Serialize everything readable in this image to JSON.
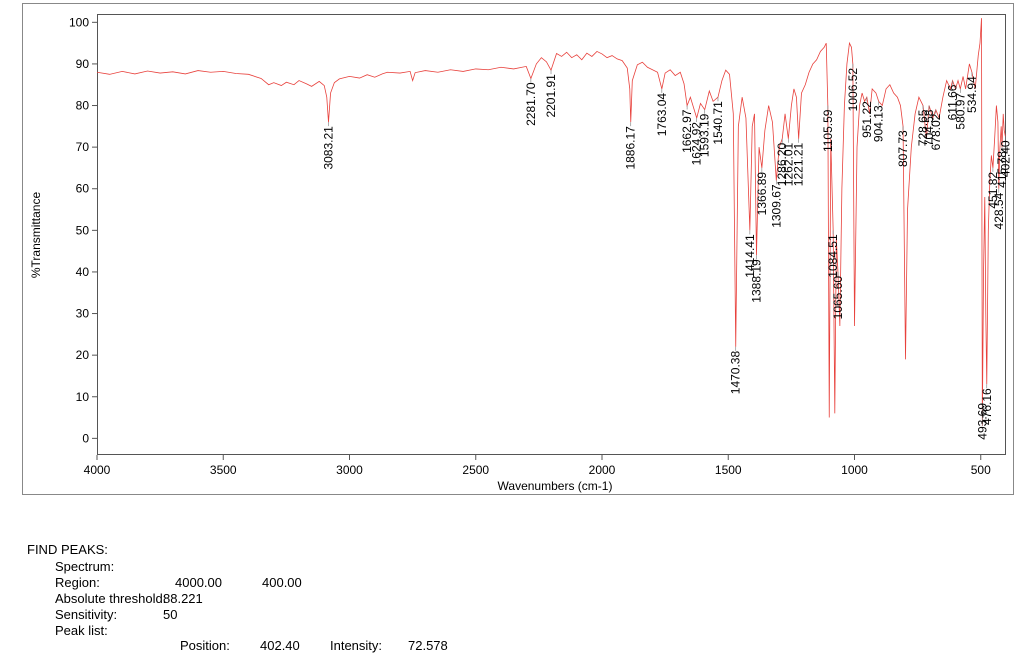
{
  "chart_data": {
    "type": "line",
    "xlabel": "Wavenumbers (cm-1)",
    "ylabel": "%Transmittance",
    "xlim": [
      4000,
      400
    ],
    "ylim": [
      -4,
      102
    ],
    "xticks": [
      4000,
      3500,
      3000,
      2500,
      2000,
      1500,
      1000,
      500
    ],
    "yticks": [
      0,
      10,
      20,
      30,
      40,
      50,
      60,
      70,
      80,
      90,
      100
    ],
    "color": "#e8413c",
    "x": [
      4000,
      3950,
      3900,
      3850,
      3800,
      3750,
      3700,
      3650,
      3600,
      3550,
      3500,
      3450,
      3400,
      3350,
      3320,
      3300,
      3270,
      3250,
      3220,
      3200,
      3170,
      3150,
      3120,
      3100,
      3090,
      3083.21,
      3075,
      3060,
      3040,
      3000,
      2960,
      2930,
      2900,
      2870,
      2850,
      2800,
      2760,
      2750,
      2740,
      2700,
      2650,
      2600,
      2550,
      2500,
      2450,
      2400,
      2350,
      2300,
      2281.7,
      2260,
      2240,
      2220,
      2201.91,
      2180,
      2160,
      2140,
      2120,
      2100,
      2080,
      2060,
      2040,
      2020,
      2000,
      1980,
      1960,
      1940,
      1920,
      1900,
      1890,
      1886.17,
      1880,
      1860,
      1840,
      1820,
      1800,
      1780,
      1763.04,
      1750,
      1730,
      1710,
      1690,
      1675,
      1662.97,
      1650,
      1640,
      1624.92,
      1610,
      1593.19,
      1575,
      1560,
      1540.71,
      1525,
      1510,
      1495,
      1480,
      1470.38,
      1460,
      1445,
      1430,
      1414.41,
      1405,
      1396,
      1388.19,
      1378,
      1366.89,
      1355,
      1340,
      1325,
      1309.67,
      1298,
      1286.2,
      1275,
      1262.01,
      1250,
      1240,
      1230,
      1221.21,
      1210,
      1195,
      1180,
      1165,
      1150,
      1135,
      1120,
      1112,
      1105.59,
      1100,
      1094,
      1084.51,
      1078,
      1072,
      1065.6,
      1058,
      1050,
      1040,
      1030,
      1020,
      1012,
      1006.52,
      1000,
      990,
      980,
      970,
      960,
      951.22,
      940,
      930,
      915,
      904.13,
      890,
      875,
      860,
      845,
      830,
      818,
      807.73,
      798,
      790,
      775,
      760,
      745,
      728.65,
      715,
      704.58,
      690,
      678.02,
      665,
      650,
      635,
      620,
      611.66,
      600,
      590,
      580.97,
      570,
      560,
      545,
      534.94,
      522,
      510,
      503,
      497,
      493.69,
      489,
      484,
      480,
      476.16,
      470,
      464,
      458,
      451.82,
      445,
      438,
      432,
      428.54,
      424,
      419,
      415.78,
      411,
      407,
      402.4
    ],
    "values": [
      88,
      87.5,
      88.2,
      87.6,
      88.3,
      87.8,
      88.1,
      87.6,
      88.4,
      88,
      88.2,
      87.7,
      87.5,
      86.5,
      85,
      85.5,
      84.8,
      85.6,
      85,
      86,
      85.2,
      84.6,
      85.8,
      84.8,
      82,
      76,
      83,
      85.5,
      86.4,
      87,
      86.6,
      87.4,
      86.8,
      87.6,
      88,
      87.8,
      88.2,
      86,
      87.9,
      88.4,
      88,
      88.6,
      88.2,
      88.8,
      88.6,
      89.2,
      88.8,
      89.4,
      86.5,
      90,
      91.5,
      90.5,
      88.5,
      92.5,
      91.8,
      92.8,
      91.5,
      92.2,
      91,
      92.6,
      91.8,
      93,
      92.4,
      91.5,
      92,
      91.2,
      90.8,
      89,
      84,
      76,
      86,
      89.8,
      90.4,
      89.2,
      88.6,
      88,
      84,
      87.8,
      88.6,
      87.2,
      88,
      85.2,
      80,
      82,
      80,
      77,
      80.5,
      79,
      83.5,
      81,
      82,
      86,
      88.5,
      87.5,
      78,
      22,
      75,
      82,
      77,
      50,
      75,
      78,
      44,
      70,
      65,
      74,
      80,
      76,
      62,
      70,
      72,
      78,
      72,
      80,
      84,
      82,
      72,
      83,
      85,
      88,
      90,
      91,
      93,
      94,
      95,
      80,
      5,
      72,
      50,
      6,
      48,
      40,
      27,
      60,
      80,
      90,
      95,
      94,
      90,
      27,
      70,
      80,
      83,
      81,
      82,
      78,
      84,
      83,
      81,
      80,
      84,
      85,
      83,
      82,
      80,
      75,
      19,
      55,
      70,
      78,
      82,
      80,
      72,
      80,
      77,
      79,
      77,
      82,
      86,
      84,
      86,
      84,
      86,
      84,
      87,
      84,
      90,
      88,
      84,
      92,
      95,
      101,
      3,
      40,
      58,
      30,
      13,
      50,
      62,
      68,
      65,
      72,
      80,
      76,
      60,
      70,
      75,
      70,
      78,
      74,
      72.578
    ],
    "peaks": {
      "x": [
        3083.21,
        2281.7,
        2201.91,
        1886.17,
        1763.04,
        1662.97,
        1624.92,
        1593.19,
        1540.71,
        1470.38,
        1414.41,
        1388.19,
        1366.89,
        1309.67,
        1286.2,
        1262.01,
        1221.21,
        1105.59,
        1084.51,
        1065.6,
        1006.52,
        951.22,
        904.13,
        807.73,
        728.65,
        704.58,
        678.02,
        611.66,
        580.97,
        534.94,
        493.69,
        476.16,
        451.82,
        428.54,
        415.78,
        402.4
      ],
      "labels": [
        "3083.21",
        "2281.70",
        "2201.91",
        "1886.17",
        "1763.04",
        "1662.97",
        "1624.92",
        "1593.19",
        "1540.71",
        "1470.38",
        "1414.41",
        "1388.19",
        "1366.89",
        "1309.67",
        "1286.20",
        "1262.01",
        "1221.21",
        "1105.59",
        "1084.51",
        "1065.60",
        "1006.52",
        "951.22",
        "904.13",
        "807.73",
        "728.65",
        "704.58",
        "678.02",
        "611.66",
        "580.97",
        "534.94",
        "493.69",
        "476.16",
        "451.82",
        "428.54",
        "415.78",
        "402.40"
      ]
    }
  },
  "report": {
    "heading": "FIND PEAKS:",
    "spectrum": "Spectrum:",
    "region": "Region:",
    "region_from": "4000.00",
    "region_to": "400.00",
    "threshold_label": "Absolute threshold:",
    "threshold": "88.221",
    "sensitivity_label": "Sensitivity:",
    "sensitivity": "50",
    "peak_list": "Peak list:",
    "position_label": "Position:",
    "position": "402.40",
    "intensity_label": "Intensity:",
    "intensity": "72.578"
  }
}
